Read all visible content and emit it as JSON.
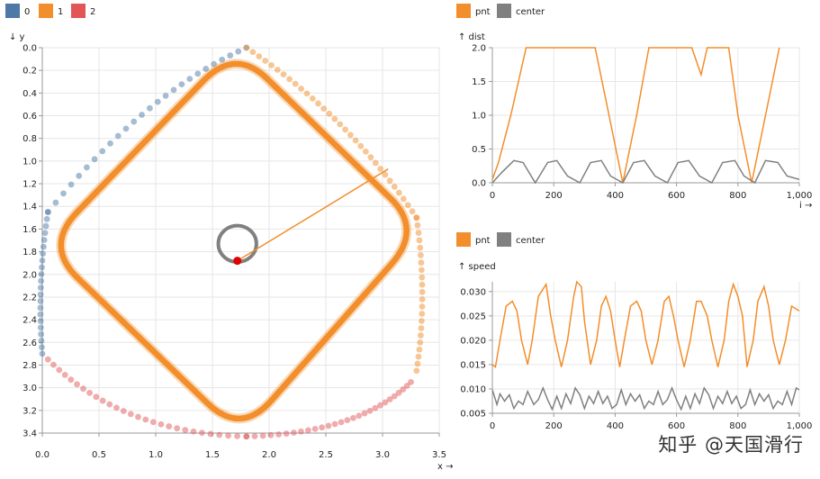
{
  "watermark": "知乎 @天国滑行",
  "colors": {
    "blue": "#4e79a7",
    "orange": "#f28e2b",
    "red": "#e15759",
    "gray": "#808080"
  },
  "chart_data": [
    {
      "type": "scatter",
      "legend": [
        {
          "name": "0",
          "color": "#4e79a7"
        },
        {
          "name": "1",
          "color": "#f28e2b"
        },
        {
          "name": "2",
          "color": "#e15759"
        }
      ],
      "xlabel": "x →",
      "ylabel": "↓ y",
      "xlim": [
        0,
        3.5
      ],
      "ylim": [
        0,
        3.4
      ],
      "x_ticks": [
        "0.0",
        "0.5",
        "1.0",
        "1.5",
        "2.0",
        "2.5",
        "3.0",
        "3.5"
      ],
      "y_ticks": [
        "0.0",
        "0.2",
        "0.4",
        "0.6",
        "0.8",
        "1.0",
        "1.2",
        "1.4",
        "1.6",
        "1.8",
        "2.0",
        "2.2",
        "2.4",
        "2.6",
        "2.8",
        "3.0",
        "3.2",
        "3.4"
      ],
      "shape_vertices": {
        "top": [
          1.7,
          0.0
        ],
        "right": [
          3.35,
          1.6
        ],
        "bottom": [
          1.75,
          3.42
        ],
        "left": [
          0.02,
          1.75
        ]
      },
      "center_loop": {
        "cx": 1.72,
        "cy": 1.73,
        "r": 0.16
      },
      "current_point": [
        1.72,
        1.88
      ],
      "connector_end": [
        3.05,
        1.07
      ],
      "series_0_blue": {
        "from": [
          1.8,
          0.0
        ],
        "to": [
          0.0,
          2.7
        ],
        "count": 48
      },
      "series_1_orange": {
        "from": [
          1.8,
          0.0
        ],
        "to": [
          3.3,
          2.85
        ],
        "count": 55
      },
      "series_2_red": {
        "from": [
          0.05,
          2.75
        ],
        "to": [
          3.25,
          2.95
        ],
        "count": 55
      }
    },
    {
      "type": "line",
      "legend": [
        {
          "name": "pnt",
          "color": "#f28e2b"
        },
        {
          "name": "center",
          "color": "#808080"
        }
      ],
      "ylabel": "↑ dist",
      "xlabel": "i →",
      "xlim": [
        0,
        1000
      ],
      "ylim": [
        0,
        2.0
      ],
      "x_ticks": [
        "0",
        "200",
        "400",
        "600",
        "800",
        "1,000"
      ],
      "y_ticks": [
        "0.0",
        "0.5",
        "1.0",
        "1.5",
        "2.0"
      ],
      "series": [
        {
          "name": "pnt",
          "color": "#f28e2b",
          "points": [
            [
              0,
              0.05
            ],
            [
              20,
              0.3
            ],
            [
              60,
              1.0
            ],
            [
              100,
              1.8
            ],
            [
              110,
              2.0
            ],
            [
              335,
              2.0
            ],
            [
              380,
              1.0
            ],
            [
              425,
              0.0
            ],
            [
              470,
              1.0
            ],
            [
              510,
              2.0
            ],
            [
              510,
              2.0
            ],
            [
              520,
              2.0
            ],
            [
              590,
              2.0
            ],
            [
              650,
              2.0
            ],
            [
              680,
              1.6
            ],
            [
              700,
              2.0
            ],
            [
              770,
              2.0
            ],
            [
              800,
              1.0
            ],
            [
              845,
              0.0
            ],
            [
              890,
              1.0
            ],
            [
              935,
              2.0
            ]
          ]
        },
        {
          "name": "center",
          "color": "#808080",
          "points": [
            [
              0,
              0.0
            ],
            [
              30,
              0.15
            ],
            [
              70,
              0.33
            ],
            [
              100,
              0.3
            ],
            [
              140,
              0.0
            ],
            [
              180,
              0.3
            ],
            [
              210,
              0.33
            ],
            [
              245,
              0.1
            ],
            [
              285,
              0.0
            ],
            [
              320,
              0.3
            ],
            [
              355,
              0.33
            ],
            [
              385,
              0.1
            ],
            [
              425,
              0.0
            ],
            [
              460,
              0.3
            ],
            [
              495,
              0.33
            ],
            [
              530,
              0.1
            ],
            [
              570,
              0.0
            ],
            [
              605,
              0.3
            ],
            [
              640,
              0.33
            ],
            [
              675,
              0.1
            ],
            [
              715,
              0.0
            ],
            [
              750,
              0.3
            ],
            [
              790,
              0.33
            ],
            [
              820,
              0.1
            ],
            [
              855,
              0.0
            ],
            [
              890,
              0.33
            ],
            [
              930,
              0.3
            ],
            [
              960,
              0.1
            ],
            [
              1000,
              0.05
            ]
          ]
        }
      ]
    },
    {
      "type": "line",
      "legend": [
        {
          "name": "pnt",
          "color": "#f28e2b"
        },
        {
          "name": "center",
          "color": "#808080"
        }
      ],
      "ylabel": "↑ speed",
      "xlabel": "i →",
      "xlim": [
        0,
        1000
      ],
      "ylim": [
        0.005,
        0.032
      ],
      "x_ticks": [
        "0",
        "200",
        "400",
        "600",
        "800",
        "1,000"
      ],
      "y_ticks": [
        "0.005",
        "0.010",
        "0.015",
        "0.020",
        "0.025",
        "0.030"
      ],
      "series": [
        {
          "name": "pnt",
          "color": "#f28e2b",
          "points": [
            [
              0,
              0.015
            ],
            [
              10,
              0.0145
            ],
            [
              25,
              0.02
            ],
            [
              45,
              0.027
            ],
            [
              65,
              0.028
            ],
            [
              80,
              0.026
            ],
            [
              95,
              0.02
            ],
            [
              115,
              0.015
            ],
            [
              130,
              0.02
            ],
            [
              150,
              0.029
            ],
            [
              175,
              0.0315
            ],
            [
              190,
              0.025
            ],
            [
              205,
              0.02
            ],
            [
              225,
              0.0145
            ],
            [
              245,
              0.02
            ],
            [
              265,
              0.029
            ],
            [
              275,
              0.032
            ],
            [
              290,
              0.031
            ],
            [
              300,
              0.024
            ],
            [
              320,
              0.015
            ],
            [
              340,
              0.02
            ],
            [
              355,
              0.027
            ],
            [
              370,
              0.029
            ],
            [
              385,
              0.026
            ],
            [
              400,
              0.02
            ],
            [
              415,
              0.0145
            ],
            [
              430,
              0.02
            ],
            [
              450,
              0.027
            ],
            [
              470,
              0.028
            ],
            [
              485,
              0.026
            ],
            [
              500,
              0.02
            ],
            [
              520,
              0.015
            ],
            [
              540,
              0.02
            ],
            [
              560,
              0.028
            ],
            [
              575,
              0.029
            ],
            [
              590,
              0.025
            ],
            [
              605,
              0.02
            ],
            [
              625,
              0.0145
            ],
            [
              645,
              0.02
            ],
            [
              665,
              0.028
            ],
            [
              680,
              0.028
            ],
            [
              700,
              0.025
            ],
            [
              715,
              0.02
            ],
            [
              735,
              0.0145
            ],
            [
              755,
              0.02
            ],
            [
              770,
              0.028
            ],
            [
              785,
              0.0315
            ],
            [
              800,
              0.029
            ],
            [
              815,
              0.025
            ],
            [
              830,
              0.0145
            ],
            [
              850,
              0.02
            ],
            [
              865,
              0.028
            ],
            [
              885,
              0.031
            ],
            [
              900,
              0.027
            ],
            [
              915,
              0.02
            ],
            [
              935,
              0.015
            ],
            [
              955,
              0.02
            ],
            [
              975,
              0.027
            ],
            [
              1000,
              0.026
            ]
          ]
        },
        {
          "name": "center",
          "color": "#808080",
          "points": [
            [
              0,
              0.0098
            ],
            [
              15,
              0.0068
            ],
            [
              25,
              0.009
            ],
            [
              40,
              0.0075
            ],
            [
              55,
              0.0088
            ],
            [
              70,
              0.006
            ],
            [
              85,
              0.0075
            ],
            [
              100,
              0.0068
            ],
            [
              115,
              0.0095
            ],
            [
              135,
              0.0068
            ],
            [
              150,
              0.0078
            ],
            [
              165,
              0.0102
            ],
            [
              180,
              0.0078
            ],
            [
              195,
              0.0058
            ],
            [
              210,
              0.0085
            ],
            [
              225,
              0.006
            ],
            [
              240,
              0.009
            ],
            [
              255,
              0.007
            ],
            [
              270,
              0.0102
            ],
            [
              285,
              0.0088
            ],
            [
              300,
              0.006
            ],
            [
              315,
              0.0085
            ],
            [
              330,
              0.007
            ],
            [
              345,
              0.0095
            ],
            [
              360,
              0.007
            ],
            [
              375,
              0.0085
            ],
            [
              390,
              0.006
            ],
            [
              405,
              0.0068
            ],
            [
              420,
              0.0098
            ],
            [
              435,
              0.0068
            ],
            [
              450,
              0.009
            ],
            [
              465,
              0.0075
            ],
            [
              480,
              0.0088
            ],
            [
              495,
              0.006
            ],
            [
              510,
              0.0075
            ],
            [
              525,
              0.0068
            ],
            [
              540,
              0.0095
            ],
            [
              555,
              0.0068
            ],
            [
              570,
              0.0078
            ],
            [
              585,
              0.0102
            ],
            [
              600,
              0.0078
            ],
            [
              615,
              0.0058
            ],
            [
              630,
              0.0085
            ],
            [
              645,
              0.006
            ],
            [
              660,
              0.009
            ],
            [
              675,
              0.007
            ],
            [
              690,
              0.0102
            ],
            [
              705,
              0.0088
            ],
            [
              720,
              0.006
            ],
            [
              735,
              0.0085
            ],
            [
              750,
              0.007
            ],
            [
              765,
              0.0095
            ],
            [
              780,
              0.007
            ],
            [
              795,
              0.0085
            ],
            [
              810,
              0.006
            ],
            [
              825,
              0.0068
            ],
            [
              840,
              0.0098
            ],
            [
              855,
              0.0068
            ],
            [
              870,
              0.009
            ],
            [
              885,
              0.0075
            ],
            [
              900,
              0.0088
            ],
            [
              915,
              0.006
            ],
            [
              930,
              0.0075
            ],
            [
              945,
              0.0068
            ],
            [
              960,
              0.0095
            ],
            [
              975,
              0.0068
            ],
            [
              990,
              0.0102
            ],
            [
              1000,
              0.0098
            ]
          ]
        }
      ]
    }
  ]
}
